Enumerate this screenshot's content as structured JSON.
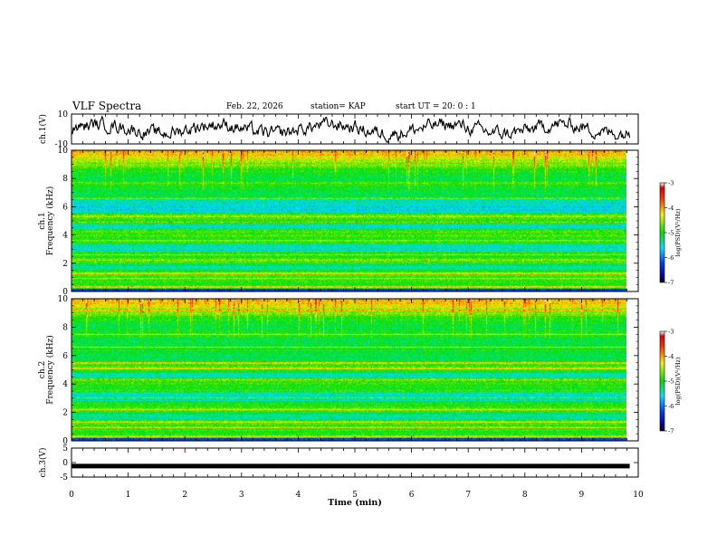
{
  "header": {
    "title": "VLF Spectra",
    "date": "Feb. 22, 2026",
    "station": "station= KAP",
    "start": "start  UT =  20: 0 : 1"
  },
  "chart_data": [
    {
      "type": "line",
      "name": "ch1-waveform",
      "ylabel": "ch.1(V)",
      "ylim": [
        -10,
        10
      ],
      "yticks": [
        10,
        -10
      ],
      "xlim": [
        0,
        10
      ],
      "color": "#000000",
      "description_note": "noisy voltage trace around 0 V, range about -8 to +9 V"
    },
    {
      "type": "heatmap",
      "name": "ch1-spectrogram",
      "ylabel": "ch.1\nFrequency (kHz)",
      "ylabel_line1": "ch.1",
      "ylabel_line2": "Frequency (kHz)",
      "ylim": [
        0,
        10
      ],
      "yticks": [
        0,
        2,
        4,
        6,
        8,
        10
      ],
      "xlim": [
        0,
        9.8
      ],
      "colorbar": {
        "label": "log(PSD)(V²/Hz)",
        "min": -7,
        "max": -3,
        "ticks": [
          -3,
          -4,
          -5,
          -6,
          -7
        ]
      },
      "bands_kHz": [
        {
          "f": 0.3,
          "level": -3.6
        },
        {
          "f": 0.9,
          "level": -4.6
        },
        {
          "f": 1.25,
          "level": -3.7
        },
        {
          "f": 2.2,
          "level": -4.0
        },
        {
          "f": 2.6,
          "level": -4.4
        },
        {
          "f": 3.6,
          "level": -4.3
        },
        {
          "f": 3.9,
          "level": -4.6
        },
        {
          "f": 4.9,
          "level": -3.9
        },
        {
          "f": 5.3,
          "level": -4.0
        },
        {
          "f": 6.6,
          "level": -4.5
        },
        {
          "f": 7.7,
          "level": -4.6
        }
      ]
    },
    {
      "type": "heatmap",
      "name": "ch2-spectrogram",
      "ylabel": "ch.2\nFrequency (kHz)",
      "ylabel_line1": "ch.2",
      "ylabel_line2": "Frequency (kHz)",
      "ylim": [
        0,
        10
      ],
      "yticks": [
        0,
        2,
        4,
        6,
        8,
        10
      ],
      "xlim": [
        0,
        9.8
      ],
      "colorbar": {
        "label": "log(PSD)(V²/Hz)",
        "min": -7,
        "max": -3,
        "ticks": [
          -3,
          -4,
          -5,
          -6,
          -7
        ]
      },
      "bands_kHz": [
        {
          "f": 0.3,
          "level": -3.6
        },
        {
          "f": 0.9,
          "level": -4.3
        },
        {
          "f": 1.3,
          "level": -4.0
        },
        {
          "f": 2.2,
          "level": -4.2
        },
        {
          "f": 3.0,
          "level": -4.5
        },
        {
          "f": 4.3,
          "level": -4.1
        },
        {
          "f": 5.1,
          "level": -3.6
        },
        {
          "f": 5.5,
          "level": -4.0
        },
        {
          "f": 6.6,
          "level": -4.6
        },
        {
          "f": 7.5,
          "level": -4.5
        },
        {
          "f": 9.2,
          "level": -3.8
        }
      ]
    },
    {
      "type": "line",
      "name": "ch3-trace",
      "ylabel": "ch.3(V)",
      "ylim": [
        -5,
        5
      ],
      "yticks": [
        5,
        0,
        -5
      ],
      "value": -1.2,
      "xlim": [
        0,
        10
      ],
      "color": "#000000"
    }
  ],
  "xaxis": {
    "label": "Time (min)",
    "ticks": [
      0,
      1,
      2,
      3,
      4,
      5,
      6,
      7,
      8,
      9,
      10
    ],
    "xlim": [
      0,
      10
    ]
  }
}
